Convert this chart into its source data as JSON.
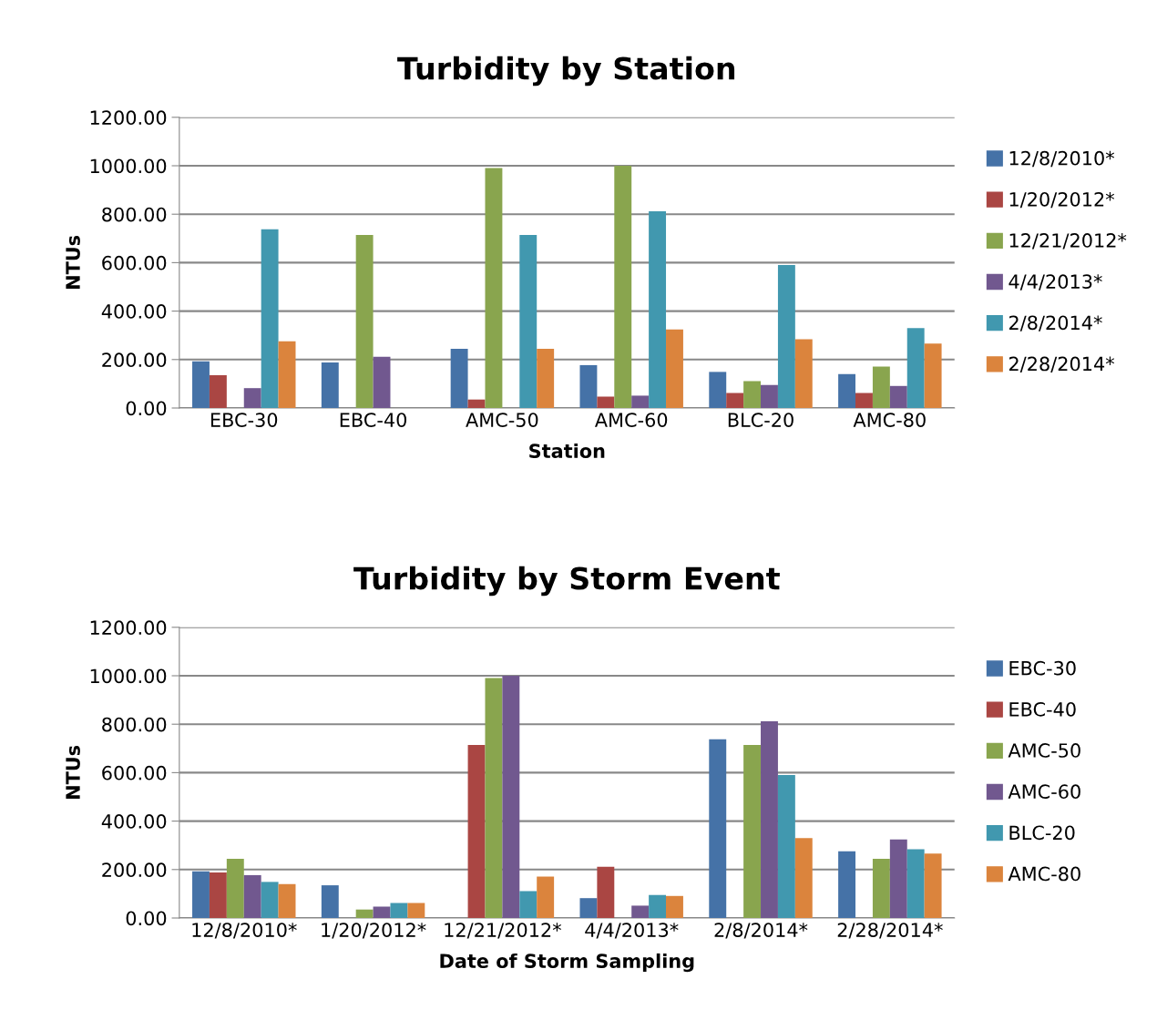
{
  "chart_data": [
    {
      "type": "bar",
      "title": "Turbidity by Station",
      "xlabel": "Station",
      "ylabel": "NTUs",
      "categories": [
        "EBC-30",
        "EBC-40",
        "AMC-50",
        "AMC-60",
        "BLC-20",
        "AMC-80"
      ],
      "series": [
        {
          "name": "12/8/2010*",
          "color": "#4572a7",
          "values": [
            193,
            188,
            244,
            177,
            149,
            140
          ]
        },
        {
          "name": "1/20/2012*",
          "color": "#aa4643",
          "values": [
            135,
            null,
            35,
            47,
            62,
            62
          ]
        },
        {
          "name": "12/21/2012*",
          "color": "#89a54e",
          "values": [
            null,
            714,
            991,
            1000,
            111,
            171
          ]
        },
        {
          "name": "4/4/2013*",
          "color": "#71588f",
          "values": [
            82,
            211,
            null,
            51,
            95,
            91
          ]
        },
        {
          "name": "2/8/2014*",
          "color": "#4198af",
          "values": [
            738,
            null,
            714,
            812,
            590,
            330
          ]
        },
        {
          "name": "2/28/2014*",
          "color": "#db843d",
          "values": [
            275,
            null,
            244,
            324,
            284,
            266
          ]
        }
      ],
      "ylim": [
        0,
        1200
      ],
      "yticks": [
        {
          "value": 0,
          "label": "0.00"
        },
        {
          "value": 200,
          "label": "200.00"
        },
        {
          "value": 400,
          "label": "400.00"
        },
        {
          "value": 600,
          "label": "600.00"
        },
        {
          "value": 800,
          "label": "800.00"
        },
        {
          "value": 1000,
          "label": "1000.00"
        },
        {
          "value": 1200,
          "label": "1200.00"
        }
      ],
      "grid": "y",
      "legend": "right"
    },
    {
      "type": "bar",
      "title": "Turbidity by Storm Event",
      "xlabel": "Date of Storm Sampling",
      "ylabel": "NTUs",
      "categories": [
        "12/8/2010*",
        "1/20/2012*",
        "12/21/2012*",
        "4/4/2013*",
        "2/8/2014*",
        "2/28/2014*"
      ],
      "series": [
        {
          "name": "EBC-30",
          "color": "#4572a7",
          "values": [
            193,
            135,
            null,
            82,
            738,
            275
          ]
        },
        {
          "name": "EBC-40",
          "color": "#aa4643",
          "values": [
            188,
            null,
            714,
            211,
            null,
            null
          ]
        },
        {
          "name": "AMC-50",
          "color": "#89a54e",
          "values": [
            244,
            35,
            991,
            null,
            714,
            244
          ]
        },
        {
          "name": "AMC-60",
          "color": "#71588f",
          "values": [
            177,
            47,
            1000,
            51,
            812,
            324
          ]
        },
        {
          "name": "BLC-20",
          "color": "#4198af",
          "values": [
            149,
            62,
            111,
            95,
            590,
            284
          ]
        },
        {
          "name": "AMC-80",
          "color": "#db843d",
          "values": [
            140,
            62,
            171,
            91,
            330,
            266
          ]
        }
      ],
      "ylim": [
        0,
        1200
      ],
      "yticks": [
        {
          "value": 0,
          "label": "0.00"
        },
        {
          "value": 200,
          "label": "200.00"
        },
        {
          "value": 400,
          "label": "400.00"
        },
        {
          "value": 600,
          "label": "600.00"
        },
        {
          "value": 800,
          "label": "800.00"
        },
        {
          "value": 1000,
          "label": "1000.00"
        },
        {
          "value": 1200,
          "label": "1200.00"
        }
      ],
      "grid": "y",
      "legend": "right"
    }
  ]
}
